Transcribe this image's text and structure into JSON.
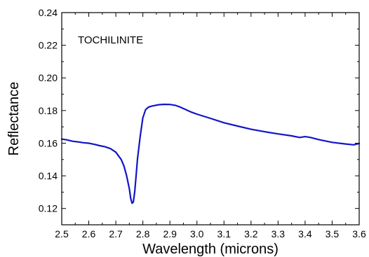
{
  "chart_data": {
    "type": "line",
    "title": "",
    "xlabel": "Wavelength (microns)",
    "ylabel": "Reflectance",
    "annotation": "TOCHILINITE",
    "xlim": [
      2.5,
      3.6
    ],
    "ylim": [
      0.11,
      0.24
    ],
    "xticks": [
      2.5,
      2.6,
      2.7,
      2.8,
      2.9,
      3.0,
      3.1,
      3.2,
      3.3,
      3.4,
      3.5,
      3.6
    ],
    "xtick_labels": [
      "2.5",
      "2.6",
      "2.7",
      "2.8",
      "2.9",
      "3.0",
      "3.1",
      "3.2",
      "3.3",
      "3.4",
      "3.5",
      "3.6"
    ],
    "yticks": [
      0.12,
      0.14,
      0.16,
      0.18,
      0.2,
      0.22,
      0.24
    ],
    "ytick_labels": [
      "0.12",
      "0.14",
      "0.16",
      "0.18",
      "0.20",
      "0.22",
      "0.24"
    ],
    "grid": false,
    "series": [
      {
        "color": "#1414c8",
        "x": [
          2.5,
          2.52,
          2.54,
          2.56,
          2.58,
          2.6,
          2.62,
          2.64,
          2.66,
          2.68,
          2.7,
          2.72,
          2.73,
          2.74,
          2.75,
          2.755,
          2.76,
          2.765,
          2.77,
          2.775,
          2.78,
          2.79,
          2.8,
          2.81,
          2.82,
          2.83,
          2.84,
          2.86,
          2.88,
          2.9,
          2.92,
          2.94,
          2.96,
          2.98,
          3.0,
          3.05,
          3.1,
          3.15,
          3.2,
          3.25,
          3.3,
          3.35,
          3.38,
          3.4,
          3.42,
          3.45,
          3.5,
          3.55,
          3.58,
          3.6
        ],
        "y": [
          0.1625,
          0.162,
          0.1612,
          0.1608,
          0.1603,
          0.16,
          0.1593,
          0.1585,
          0.1578,
          0.1567,
          0.1545,
          0.15,
          0.146,
          0.14,
          0.132,
          0.1262,
          0.1232,
          0.124,
          0.1305,
          0.14,
          0.15,
          0.164,
          0.1755,
          0.1805,
          0.182,
          0.1826,
          0.183,
          0.1836,
          0.1838,
          0.1837,
          0.1832,
          0.182,
          0.1805,
          0.179,
          0.1778,
          0.1752,
          0.1725,
          0.1705,
          0.1685,
          0.167,
          0.1657,
          0.1645,
          0.1635,
          0.164,
          0.1635,
          0.1622,
          0.1605,
          0.1595,
          0.159,
          0.1598
        ]
      }
    ]
  }
}
